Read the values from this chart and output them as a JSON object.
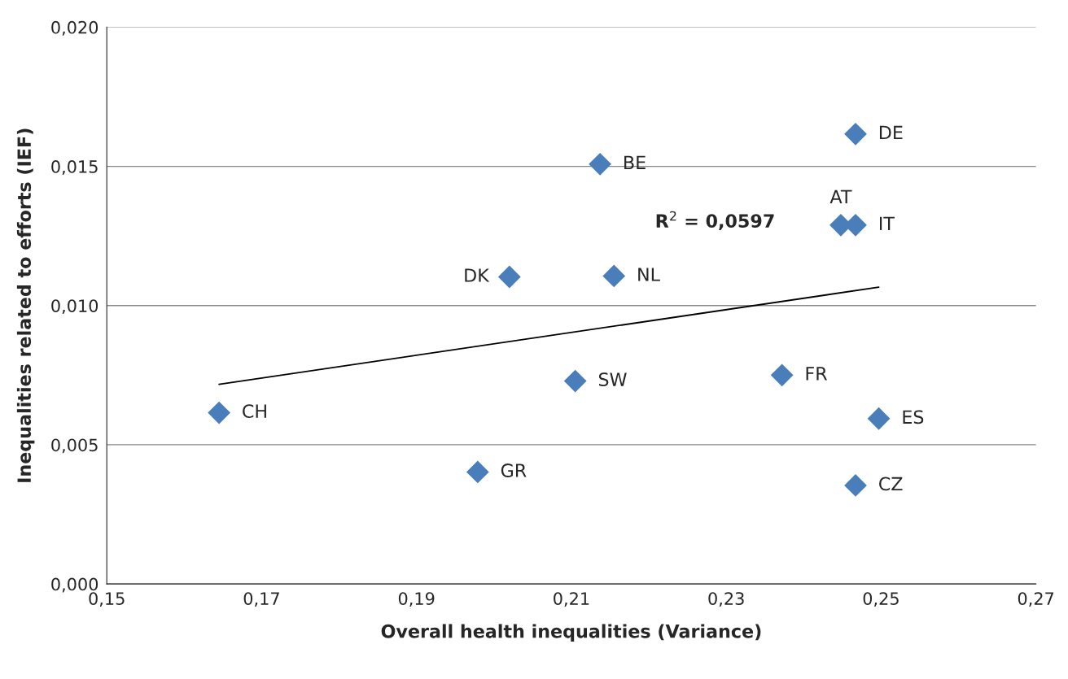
{
  "chart_data": {
    "type": "scatter",
    "xlabel": "Overall health inequalities (Variance)",
    "ylabel": "Inequalities related to efforts (IEF)",
    "series": [
      {
        "color": "#4a7ebb",
        "marker": "diamond",
        "x": [
          0.1645,
          0.1979,
          0.202,
          0.2105,
          0.2137,
          0.2155,
          0.2372,
          0.2448,
          0.2467,
          0.2467,
          0.2497,
          0.2467
        ],
        "values": [
          0.00615,
          0.00402,
          0.01103,
          0.00729,
          0.01508,
          0.01106,
          0.0075,
          0.01289,
          0.01289,
          0.01616,
          0.00594,
          0.00354
        ]
      },
      {
        "type": "line",
        "color": "#000000",
        "x": [
          0.1645,
          0.2497
        ],
        "values": [
          0.00717,
          0.01066
        ]
      }
    ],
    "annotations": [
      {
        "text": "CH",
        "x": 0.1645,
        "y": 0.00615
      },
      {
        "text": "GR",
        "x": 0.1979,
        "y": 0.00402
      },
      {
        "text": "DK",
        "x": 0.202,
        "y": 0.01103
      },
      {
        "text": "SW",
        "x": 0.2105,
        "y": 0.00729
      },
      {
        "text": "BE",
        "x": 0.2137,
        "y": 0.01508
      },
      {
        "text": "NL",
        "x": 0.2155,
        "y": 0.01106
      },
      {
        "text": "FR",
        "x": 0.2372,
        "y": 0.0075
      },
      {
        "text": "AT",
        "x": 0.2448,
        "y": 0.01289
      },
      {
        "text": "IT",
        "x": 0.2467,
        "y": 0.01289
      },
      {
        "text": "DE",
        "x": 0.2467,
        "y": 0.01616
      },
      {
        "text": "ES",
        "x": 0.2497,
        "y": 0.00594
      },
      {
        "text": "CZ",
        "x": 0.2467,
        "y": 0.00354
      },
      "R$^{2}$ = 0,0597"
    ],
    "xlim": [
      0.15,
      0.27
    ],
    "xticks": [
      {
        "value": 0.15,
        "label": "0,15"
      },
      {
        "value": 0.17,
        "label": "0,17"
      },
      {
        "value": 0.19,
        "label": "0,19"
      },
      {
        "value": 0.21,
        "label": "0,21"
      },
      {
        "value": 0.23,
        "label": "0,23"
      },
      {
        "value": 0.25,
        "label": "0,25"
      },
      {
        "value": 0.27,
        "label": "0,27"
      }
    ],
    "ylim": [
      0,
      0.02
    ],
    "yticks": [
      {
        "value": 0,
        "label": "0,000"
      },
      {
        "value": 0.005,
        "label": "0,005"
      },
      {
        "value": 0.01,
        "label": "0,010"
      },
      {
        "value": 0.015,
        "label": "0,015"
      },
      {
        "value": 0.02,
        "label": "0,020"
      }
    ],
    "grid": "y",
    "legend": false
  }
}
